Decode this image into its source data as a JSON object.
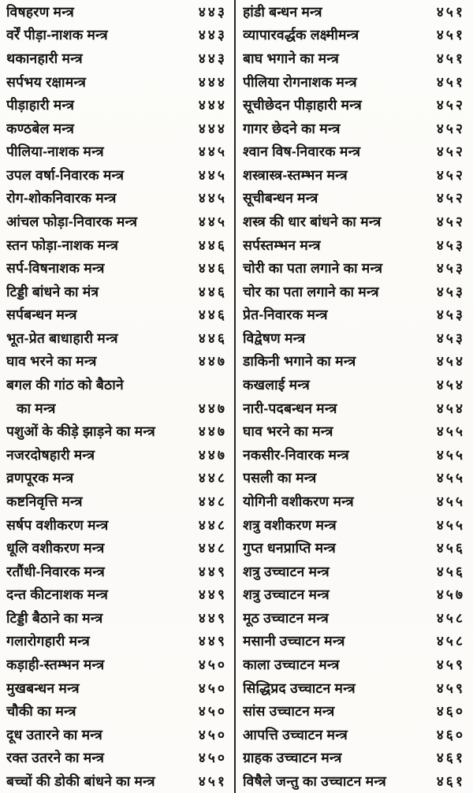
{
  "document": {
    "kind": "book-index-scan",
    "language": "Hindi",
    "ink_color": "#171513",
    "paper_color": "#fbfaf7",
    "divider_color": "#262423",
    "left_column": {
      "rows": [
        {
          "title": "विषहरण मन्त्र",
          "page": "४४३"
        },
        {
          "title": "वर्रें पीड़ा-नाशक मन्त्र",
          "page": "४४३"
        },
        {
          "title": "थकानहारी मन्त्र",
          "page": "४४३"
        },
        {
          "title": "सर्पभय रक्षामन्त्र",
          "page": "४४४"
        },
        {
          "title": "पीड़ाहारी मन्त्र",
          "page": "४४४"
        },
        {
          "title": "कण्ठबेल मन्त्र",
          "page": "४४४"
        },
        {
          "title": "पीलिया-नाशक मन्त्र",
          "page": "४४५"
        },
        {
          "title": "उपल वर्षा-निवारक मन्त्र",
          "page": "४४५"
        },
        {
          "title": "रोग-शोकनिवारक मन्त्र",
          "page": "४४५"
        },
        {
          "title": "आंचल फोड़ा-निवारक मन्त्र",
          "page": "४४५"
        },
        {
          "title": "स्तन फोड़ा-नाशक मन्त्र",
          "page": "४४६"
        },
        {
          "title": "सर्प-विषनाशक मन्त्र",
          "page": "४४६"
        },
        {
          "title": "टिड्डी बांधने का मंत्र",
          "page": "४४६"
        },
        {
          "title": "सर्पबन्धन मन्त्र",
          "page": "४४६"
        },
        {
          "title": "भूत-प्रेत बाधाहारी मन्त्र",
          "page": "४४६"
        },
        {
          "title": "घाव भरने का मन्त्र",
          "page": "४४७"
        },
        {
          "title": "बगल की गांठ को बैठाने",
          "page": ""
        },
        {
          "title": "का मन्त्र",
          "page": "४४७",
          "indent": true
        },
        {
          "title": "पशुओं के कीड़े झाड़ने का मन्त्र",
          "page": "४४७"
        },
        {
          "title": "नजरदोषहारी मन्त्र",
          "page": "४४७"
        },
        {
          "title": "व्रणपूरक मन्त्र",
          "page": "४४८"
        },
        {
          "title": "कष्टनिवृत्ति मन्त्र",
          "page": "४४८"
        },
        {
          "title": "सर्षप वशीकरण मन्त्र",
          "page": "४४८"
        },
        {
          "title": "धूलि वशीकरण मन्त्र",
          "page": "४४८"
        },
        {
          "title": "रतौंधी-निवारक मन्त्र",
          "page": "४४९"
        },
        {
          "title": "दन्त कीटनाशक मन्त्र",
          "page": "४४९"
        },
        {
          "title": "टिड्डी बैठाने का मन्त्र",
          "page": "४४९"
        },
        {
          "title": "गलारोगहारी मन्त्र",
          "page": "४४९"
        },
        {
          "title": "कड़ाही-स्तम्भन मन्त्र",
          "page": "४५०"
        },
        {
          "title": "मुखबन्धन मन्त्र",
          "page": "४५०"
        },
        {
          "title": "चौकी का मन्त्र",
          "page": "४५०"
        },
        {
          "title": "दूध उतारने का मन्त्र",
          "page": "४५०"
        },
        {
          "title": "रक्त उतरने का मन्त्र",
          "page": "४५०"
        },
        {
          "title": "बच्चों की डोकी बांधने का मन्त्र",
          "page": "४५१"
        }
      ]
    },
    "right_column": {
      "rows": [
        {
          "title": "हांडी बन्धन मन्त्र",
          "page": "४५१"
        },
        {
          "title": "व्यापारवर्द्धक लक्ष्मीमन्त्र",
          "page": "४५१"
        },
        {
          "title": "बाघ भगाने का मन्त्र",
          "page": "४५१"
        },
        {
          "title": "पीलिया रोगनाशक मन्त्र",
          "page": "४५१"
        },
        {
          "title": "सूचीछेदन पीड़ाहारी मन्त्र",
          "page": "४५२"
        },
        {
          "title": "गागर छेदने का मन्त्र",
          "page": "४५२"
        },
        {
          "title": "श्वान विष-निवारक मन्त्र",
          "page": "४५२"
        },
        {
          "title": "शस्त्रास्त्र-स्तम्भन मन्त्र",
          "page": "४५२"
        },
        {
          "title": "सूचीबन्धन मन्त्र",
          "page": "४५२"
        },
        {
          "title": "शस्त्र की धार बांधने का मन्त्र",
          "page": "४५२"
        },
        {
          "title": "सर्पस्तम्भन मन्त्र",
          "page": "४५३"
        },
        {
          "title": "चोरी का पता लगाने का मन्त्र",
          "page": "४५३"
        },
        {
          "title": "चोर का पता लगाने का मन्त्र",
          "page": "४५३"
        },
        {
          "title": "प्रेत-निवारक मन्त्र",
          "page": "४५३"
        },
        {
          "title": "विद्वेषण मन्त्र",
          "page": "४५३"
        },
        {
          "title": "डाकिनी भगाने का मन्त्र",
          "page": "४५४"
        },
        {
          "title": "कखलाई मन्त्र",
          "page": "४५४"
        },
        {
          "title": "नारी-पदबन्धन मन्त्र",
          "page": "४५४"
        },
        {
          "title": "घाव भरने का मन्त्र",
          "page": "४५५"
        },
        {
          "title": "नकसीर-निवारक मन्त्र",
          "page": "४५५"
        },
        {
          "title": "पसली का मन्त्र",
          "page": "४५५"
        },
        {
          "title": "योगिनी वशीकरण मन्त्र",
          "page": "४५५"
        },
        {
          "title": "शत्रु वशीकरण मन्त्र",
          "page": "४५५"
        },
        {
          "title": "गुप्त धनप्राप्ति मन्त्र",
          "page": "४५६"
        },
        {
          "title": "शत्रु उच्चाटन मन्त्र",
          "page": "४५६"
        },
        {
          "title": "शत्रु उच्चाटन मन्त्र",
          "page": "४५७"
        },
        {
          "title": "मूठ उच्चाटन मन्त्र",
          "page": "४५८"
        },
        {
          "title": "मसानी उच्चाटन मन्त्र",
          "page": "४५८"
        },
        {
          "title": "काला उच्चाटन मन्त्र",
          "page": "४५९"
        },
        {
          "title": "सिद्धिप्रद उच्चाटन मन्त्र",
          "page": "४५९"
        },
        {
          "title": "सांस उच्चाटन मन्त्र",
          "page": "४६०"
        },
        {
          "title": "आपत्ति उच्चाटन मन्त्र",
          "page": "४६०"
        },
        {
          "title": "ग्राहक उच्चाटन मन्त्र",
          "page": "४६१"
        },
        {
          "title": "विषैले जन्तु का उच्चाटन मन्त्र",
          "page": "४६१"
        }
      ]
    }
  }
}
